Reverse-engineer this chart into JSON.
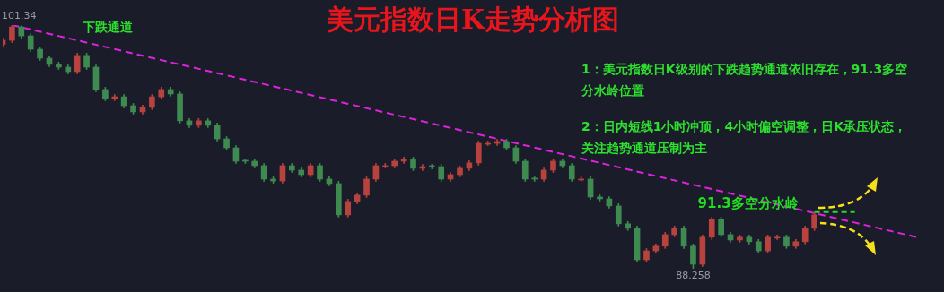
{
  "chart_data": {
    "type": "candlestick",
    "title": "美元指数日K走势分析图",
    "categories": [
      null,
      null,
      null,
      null,
      null,
      null,
      null,
      null,
      null,
      null,
      null,
      null,
      null,
      null,
      null,
      null,
      null,
      null,
      null,
      null,
      null,
      null,
      null,
      null,
      null,
      null,
      null,
      null,
      null,
      null,
      null,
      null,
      null,
      null,
      null,
      null,
      null,
      null,
      null,
      null,
      null,
      null,
      null,
      null,
      null,
      null,
      null,
      null,
      null,
      null,
      null,
      null,
      null,
      null,
      null,
      null,
      null,
      null,
      null,
      null,
      null,
      null,
      null,
      null,
      null,
      null,
      null,
      null,
      null,
      null,
      null,
      null,
      null,
      null,
      null,
      null,
      null,
      null,
      null,
      null,
      null,
      null,
      null,
      null,
      null,
      null,
      null,
      null,
      null,
      null,
      null,
      null,
      null,
      null,
      null,
      null,
      null,
      null,
      null
    ],
    "ohlc": [
      [
        100.3,
        100.64,
        100.18,
        100.52
      ],
      [
        100.52,
        101.34,
        100.4,
        101.24
      ],
      [
        101.24,
        101.3,
        100.64,
        100.76
      ],
      [
        100.76,
        100.88,
        99.92,
        100.04
      ],
      [
        100.04,
        100.16,
        99.44,
        99.56
      ],
      [
        99.56,
        99.68,
        99.11,
        99.23
      ],
      [
        99.23,
        99.35,
        98.96,
        99.08
      ],
      [
        99.08,
        99.2,
        98.72,
        98.84
      ],
      [
        98.84,
        99.83,
        98.72,
        99.71
      ],
      [
        99.71,
        99.83,
        98.96,
        99.08
      ],
      [
        99.08,
        99.2,
        97.76,
        97.88
      ],
      [
        97.88,
        98.0,
        97.28,
        97.4
      ],
      [
        97.4,
        97.61,
        97.28,
        97.49
      ],
      [
        97.49,
        97.61,
        96.89,
        97.01
      ],
      [
        97.01,
        97.13,
        96.56,
        96.68
      ],
      [
        96.68,
        97.04,
        96.56,
        96.92
      ],
      [
        96.92,
        97.61,
        96.8,
        97.49
      ],
      [
        97.49,
        98.0,
        97.37,
        97.88
      ],
      [
        97.88,
        98.0,
        97.52,
        97.64
      ],
      [
        97.64,
        97.76,
        96.08,
        96.2
      ],
      [
        96.2,
        96.32,
        95.84,
        95.96
      ],
      [
        95.96,
        96.32,
        95.84,
        96.2
      ],
      [
        96.2,
        96.32,
        95.84,
        95.96
      ],
      [
        95.96,
        96.08,
        95.11,
        95.23
      ],
      [
        95.23,
        95.35,
        94.63,
        94.75
      ],
      [
        94.75,
        94.87,
        93.91,
        94.03
      ],
      [
        94.08,
        94.15,
        93.91,
        94.03
      ],
      [
        94.03,
        94.15,
        93.67,
        93.79
      ],
      [
        93.79,
        93.91,
        92.95,
        93.07
      ],
      [
        93.07,
        93.19,
        92.85,
        92.97
      ],
      [
        92.97,
        93.91,
        92.85,
        93.79
      ],
      [
        93.79,
        93.91,
        93.43,
        93.55
      ],
      [
        93.55,
        93.67,
        93.19,
        93.31
      ],
      [
        93.31,
        93.91,
        93.19,
        93.79
      ],
      [
        93.79,
        93.91,
        92.95,
        93.07
      ],
      [
        93.07,
        93.19,
        92.71,
        92.83
      ],
      [
        92.83,
        92.95,
        91.03,
        91.15
      ],
      [
        91.15,
        91.99,
        91.03,
        91.87
      ],
      [
        91.87,
        92.33,
        91.75,
        92.21
      ],
      [
        92.21,
        93.19,
        92.09,
        93.07
      ],
      [
        93.07,
        93.91,
        92.95,
        93.79
      ],
      [
        93.74,
        93.91,
        93.67,
        93.79
      ],
      [
        93.79,
        94.15,
        93.67,
        94.03
      ],
      [
        94.03,
        94.25,
        93.91,
        94.13
      ],
      [
        94.13,
        94.25,
        93.53,
        93.65
      ],
      [
        93.65,
        93.86,
        93.53,
        93.74
      ],
      [
        93.79,
        93.86,
        93.62,
        93.74
      ],
      [
        93.74,
        93.86,
        92.95,
        93.07
      ],
      [
        93.07,
        93.43,
        92.95,
        93.31
      ],
      [
        93.31,
        93.77,
        93.19,
        93.65
      ],
      [
        93.65,
        94.06,
        93.53,
        93.94
      ],
      [
        93.94,
        95.11,
        93.82,
        94.99
      ],
      [
        94.94,
        95.11,
        94.87,
        94.99
      ],
      [
        94.99,
        95.21,
        94.87,
        95.09
      ],
      [
        95.09,
        95.21,
        94.63,
        94.75
      ],
      [
        94.75,
        94.87,
        93.91,
        94.03
      ],
      [
        94.03,
        94.15,
        92.95,
        93.07
      ],
      [
        93.12,
        93.19,
        92.95,
        93.07
      ],
      [
        93.07,
        93.67,
        92.95,
        93.55
      ],
      [
        93.55,
        94.15,
        93.43,
        94.03
      ],
      [
        94.03,
        94.15,
        93.67,
        93.79
      ],
      [
        93.79,
        93.91,
        92.95,
        93.07
      ],
      [
        93.02,
        93.19,
        92.95,
        93.07
      ],
      [
        93.07,
        93.19,
        91.99,
        92.11
      ],
      [
        92.11,
        92.23,
        91.89,
        92.01
      ],
      [
        92.01,
        92.13,
        91.51,
        91.63
      ],
      [
        91.63,
        91.75,
        90.55,
        90.67
      ],
      [
        90.67,
        90.79,
        90.31,
        90.43
      ],
      [
        90.43,
        90.55,
        88.62,
        88.74
      ],
      [
        88.74,
        89.34,
        88.62,
        89.22
      ],
      [
        89.22,
        89.59,
        89.1,
        89.47
      ],
      [
        89.47,
        90.21,
        89.35,
        90.09
      ],
      [
        90.09,
        90.55,
        89.97,
        90.43
      ],
      [
        90.43,
        90.55,
        89.35,
        89.47
      ],
      [
        89.47,
        89.59,
        88.258,
        88.5
      ],
      [
        88.5,
        90.07,
        88.38,
        89.95
      ],
      [
        89.95,
        91.03,
        89.83,
        90.91
      ],
      [
        90.91,
        91.03,
        89.97,
        90.09
      ],
      [
        90.09,
        90.21,
        89.68,
        89.8
      ],
      [
        89.8,
        90.07,
        89.68,
        89.95
      ],
      [
        89.95,
        90.07,
        89.59,
        89.71
      ],
      [
        89.71,
        89.83,
        89.1,
        89.22
      ],
      [
        89.22,
        90.07,
        89.1,
        89.95
      ],
      [
        89.9,
        90.07,
        89.83,
        89.95
      ],
      [
        89.95,
        90.07,
        89.35,
        89.47
      ],
      [
        89.47,
        89.83,
        89.35,
        89.71
      ],
      [
        89.71,
        90.55,
        89.59,
        90.43
      ],
      [
        90.43,
        91.27,
        90.31,
        91.15
      ],
      null,
      null,
      null,
      null,
      null,
      null,
      null,
      null,
      null,
      null,
      null
    ],
    "series": [
      {
        "type": "line",
        "color": "#dd22dd",
        "line_style": "dashed",
        "values": [
          null,
          101.34,
          null,
          null,
          null,
          null,
          null,
          null,
          null,
          null,
          null,
          null,
          null,
          null,
          null,
          null,
          null,
          null,
          null,
          null,
          null,
          null,
          null,
          null,
          null,
          null,
          null,
          null,
          null,
          null,
          null,
          null,
          null,
          null,
          null,
          null,
          null,
          null,
          null,
          null,
          null,
          null,
          null,
          null,
          null,
          null,
          null,
          null,
          null,
          null,
          null,
          null,
          null,
          null,
          null,
          null,
          null,
          null,
          null,
          null,
          null,
          null,
          null,
          null,
          null,
          null,
          null,
          null,
          null,
          null,
          null,
          null,
          null,
          null,
          null,
          null,
          null,
          null,
          null,
          null,
          null,
          null,
          null,
          null,
          null,
          null,
          null,
          null,
          null,
          null,
          null,
          null,
          null,
          null,
          null,
          null,
          null,
          null,
          89.95
        ]
      }
    ],
    "ref_lines": [
      {
        "axis": "y",
        "value": 91.3,
        "label": "91.3多空分水岭",
        "color": "#22dd22",
        "line_style": "dashed"
      }
    ],
    "annotations": [
      "下跌通道",
      "1：美元指数日K级别的下跌趋势通道依旧存在，91.3多空分水岭位置",
      "2：日内短线1小时冲顶，4小时偏空调整，日K承压状态，关注趋势通道压制为主",
      {
        "text": "101.34",
        "y": 101.34
      },
      {
        "text": "88.258",
        "y": 88.258
      }
    ],
    "legend": false,
    "tick_labels": false
  }
}
